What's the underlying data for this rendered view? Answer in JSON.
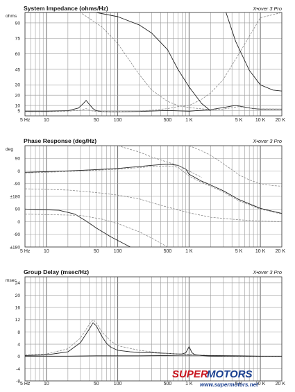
{
  "chart_data": [
    {
      "type": "line",
      "title": "System Impedance (ohms/Hz)",
      "brand": "X•over 3 Pro",
      "unit_label": "ohms",
      "x_scale": "log",
      "xlim": [
        5,
        20000
      ],
      "ylim": [
        0,
        100
      ],
      "x_ticks": [
        {
          "v": 5,
          "label": "5 Hz"
        },
        {
          "v": 10,
          "label": "10"
        },
        {
          "v": 50,
          "label": "50"
        },
        {
          "v": 100,
          "label": "100"
        },
        {
          "v": 500,
          "label": "500"
        },
        {
          "v": 1000,
          "label": "1 K"
        },
        {
          "v": 5000,
          "label": "5 K"
        },
        {
          "v": 10000,
          "label": "10 K"
        },
        {
          "v": 20000,
          "label": "20 K"
        }
      ],
      "y_ticks": [
        {
          "v": 90,
          "label": "90"
        },
        {
          "v": 75,
          "label": "75"
        },
        {
          "v": 60,
          "label": "60"
        },
        {
          "v": 45,
          "label": "45"
        },
        {
          "v": 30,
          "label": "30"
        },
        {
          "v": 20,
          "label": "20"
        },
        {
          "v": 10,
          "label": "10"
        },
        {
          "v": 5,
          "label": "5"
        }
      ],
      "series": [
        {
          "style": "solid",
          "x": [
            5,
            10,
            20,
            28,
            33,
            36,
            40,
            45,
            50,
            60,
            80,
            100,
            200,
            300,
            500,
            700,
            1000,
            2000,
            3000,
            4000,
            4500,
            5000,
            6000,
            8000,
            10000,
            20000
          ],
          "y": [
            4.5,
            4.5,
            5,
            7.5,
            12,
            15,
            11,
            7,
            5,
            4.2,
            4,
            4,
            4.2,
            4.6,
            5.2,
            4.8,
            4.5,
            6,
            8,
            9.5,
            10,
            9.5,
            8.5,
            7,
            6.5,
            6.5
          ]
        },
        {
          "style": "dashed",
          "x": [
            5,
            10,
            20,
            30,
            36,
            42,
            50,
            70,
            100,
            200,
            300,
            500,
            700,
            1000,
            1500,
            2000,
            3000,
            5000,
            10000,
            20000
          ],
          "y": [
            4,
            4,
            4.5,
            5.5,
            7,
            5,
            4.2,
            4,
            4,
            4.5,
            5.5,
            7,
            9,
            10,
            16,
            22,
            35,
            60,
            95,
            100
          ]
        },
        {
          "style": "dashed",
          "x": [
            5,
            10,
            30,
            60,
            100,
            200,
            300,
            500,
            700,
            1000,
            2000,
            3000,
            4000,
            5000,
            7000,
            10000,
            20000
          ],
          "y": [
            100,
            100,
            100,
            86,
            70,
            40,
            25,
            14,
            10,
            8,
            6,
            6.5,
            8,
            9,
            7.5,
            6.8,
            6.5
          ]
        },
        {
          "style": "solid",
          "x": [
            3300,
            4500,
            7000,
            10000,
            15000,
            20000
          ],
          "y": [
            100,
            72,
            44,
            30,
            25,
            24
          ]
        },
        {
          "style": "solid",
          "x": [
            5,
            20,
            50,
            100,
            200,
            300,
            500,
            700,
            1000,
            1500,
            2000
          ],
          "y": [
            100,
            100,
            100,
            96,
            88,
            80,
            64,
            45,
            28,
            12,
            5
          ]
        }
      ]
    },
    {
      "type": "line",
      "title": "Phase Response (deg/Hz)",
      "brand": "X•over 3 Pro",
      "unit_label": "deg",
      "x_scale": "log",
      "xlim": [
        5,
        20000
      ],
      "ylim": [
        0,
        8
      ],
      "x_ticks": [
        {
          "v": 5,
          "label": "5 Hz"
        },
        {
          "v": 10,
          "label": "10"
        },
        {
          "v": 50,
          "label": "50"
        },
        {
          "v": 100,
          "label": "100"
        },
        {
          "v": 500,
          "label": "500"
        },
        {
          "v": 1000,
          "label": "1 K"
        },
        {
          "v": 5000,
          "label": "5 K"
        },
        {
          "v": 10000,
          "label": "10 K"
        },
        {
          "v": 20000,
          "label": "20 K"
        }
      ],
      "y_ticks": [
        {
          "v": 7,
          "label": "90"
        },
        {
          "v": 6,
          "label": "0"
        },
        {
          "v": 5,
          "label": "-90"
        },
        {
          "v": 4,
          "label": "±180"
        },
        {
          "v": 3,
          "label": "90"
        },
        {
          "v": 2,
          "label": "0"
        },
        {
          "v": 1,
          "label": "-90"
        },
        {
          "v": 0,
          "label": "±180"
        }
      ],
      "series": [
        {
          "style": "solid",
          "x": [
            5,
            10,
            30,
            100,
            300,
            500,
            700,
            900,
            1000,
            1500,
            2000,
            3000,
            5000,
            10000,
            20000
          ],
          "y": [
            5.9,
            5.95,
            6.05,
            6.2,
            6.45,
            6.55,
            6.45,
            6.15,
            5.75,
            5.2,
            4.9,
            4.45,
            3.75,
            3.05,
            2.65
          ]
        },
        {
          "style": "dashed",
          "x": [
            5,
            10,
            30,
            100,
            300,
            500,
            700,
            1000,
            1500,
            2000,
            3000,
            5000,
            10000,
            20000
          ],
          "y": [
            5.85,
            5.9,
            6.0,
            6.15,
            6.35,
            6.4,
            6.3,
            5.6,
            5.1,
            4.8,
            4.35,
            3.65,
            3.0,
            2.6
          ]
        },
        {
          "style": "dashed",
          "x": [
            100,
            200,
            300,
            500,
            700,
            1000,
            1500
          ],
          "y": [
            8,
            7.5,
            7.1,
            6.7,
            6.45,
            6.0,
            5.5
          ]
        },
        {
          "style": "dashed",
          "x": [
            1000,
            1500,
            2000,
            3000,
            4000,
            5000,
            7000,
            10000,
            15000,
            20000
          ],
          "y": [
            8,
            7.6,
            7.25,
            6.6,
            6.1,
            5.7,
            5.3,
            5.0,
            4.85,
            4.8
          ]
        },
        {
          "style": "dashed",
          "x": [
            5,
            20,
            50,
            100,
            200,
            300,
            500,
            1000,
            2000,
            5000,
            10000,
            20000
          ],
          "y": [
            4.6,
            4.5,
            4.3,
            4.1,
            3.8,
            3.5,
            3.15,
            2.7,
            2.35,
            2.15,
            2.05,
            2.0
          ]
        },
        {
          "style": "solid",
          "x": [
            5,
            15,
            25,
            35,
            50,
            80,
            150
          ],
          "y": [
            3.0,
            2.9,
            2.6,
            2.1,
            1.5,
            0.8,
            0.0
          ]
        },
        {
          "style": "dashed",
          "x": [
            5,
            30,
            60,
            100,
            200,
            300,
            500
          ],
          "y": [
            2.6,
            2.5,
            2.2,
            1.85,
            1.2,
            0.7,
            0.0
          ]
        }
      ]
    },
    {
      "type": "line",
      "title": "Group Delay (msec/Hz)",
      "brand": "X•over 3 Pro",
      "unit_label": "msec",
      "x_scale": "log",
      "xlim": [
        5,
        20000
      ],
      "ylim": [
        -8,
        26
      ],
      "x_ticks": [
        {
          "v": 5,
          "label": "5 Hz"
        },
        {
          "v": 10,
          "label": "10"
        },
        {
          "v": 50,
          "label": "50"
        },
        {
          "v": 100,
          "label": "100"
        },
        {
          "v": 500,
          "label": "500"
        },
        {
          "v": 1000,
          "label": "1 K"
        },
        {
          "v": 5000,
          "label": "5 K"
        },
        {
          "v": 10000,
          "label": "10 K"
        },
        {
          "v": 20000,
          "label": "20 K"
        }
      ],
      "y_ticks": [
        {
          "v": 24,
          "label": "24"
        },
        {
          "v": 20,
          "label": "20"
        },
        {
          "v": 16,
          "label": "16"
        },
        {
          "v": 12,
          "label": "12"
        },
        {
          "v": 8,
          "label": "8"
        },
        {
          "v": 4,
          "label": "4"
        },
        {
          "v": 0,
          "label": "0"
        },
        {
          "v": -4,
          "label": "-4"
        },
        {
          "v": -8,
          "label": "-8"
        }
      ],
      "series": [
        {
          "style": "solid",
          "x": [
            5,
            10,
            20,
            30,
            40,
            45,
            50,
            60,
            70,
            80,
            100,
            150,
            200,
            300,
            500,
            700,
            800,
            900,
            950,
            1000,
            1050,
            1100,
            1200,
            1500,
            2000,
            5000,
            10000,
            20000
          ],
          "y": [
            0.3,
            0.5,
            1.5,
            4.5,
            9,
            11,
            10,
            6.5,
            4.2,
            3,
            2,
            1.5,
            1.3,
            1.2,
            1,
            0.8,
            0.8,
            1.2,
            2.2,
            3.2,
            2.2,
            1.2,
            0.6,
            0.3,
            0.1,
            0,
            0,
            0
          ]
        },
        {
          "style": "dashed",
          "x": [
            5,
            10,
            20,
            30,
            40,
            45,
            50,
            60,
            80,
            100,
            200,
            300,
            500,
            700,
            1000,
            2000,
            5000,
            20000
          ],
          "y": [
            0.5,
            0.8,
            2.5,
            6,
            10.5,
            12,
            11,
            8,
            5,
            3.5,
            2,
            1.5,
            1,
            0.8,
            0.6,
            0.3,
            0.1,
            0
          ]
        },
        {
          "style": "solid",
          "x": [
            5,
            20,
            50,
            100,
            200,
            500,
            1000,
            2000,
            5000,
            10000,
            20000
          ],
          "y": [
            0.1,
            0.1,
            0.2,
            0.2,
            0.2,
            0.3,
            0.4,
            0.3,
            0.2,
            0.1,
            0.1
          ]
        }
      ]
    }
  ],
  "watermark": {
    "brand_red": "SUPER",
    "brand_blue": "MOTORS",
    "url": "www.supermotors.net",
    "colors": {
      "red": "#c8141e",
      "blue": "#1a3f8f"
    }
  }
}
